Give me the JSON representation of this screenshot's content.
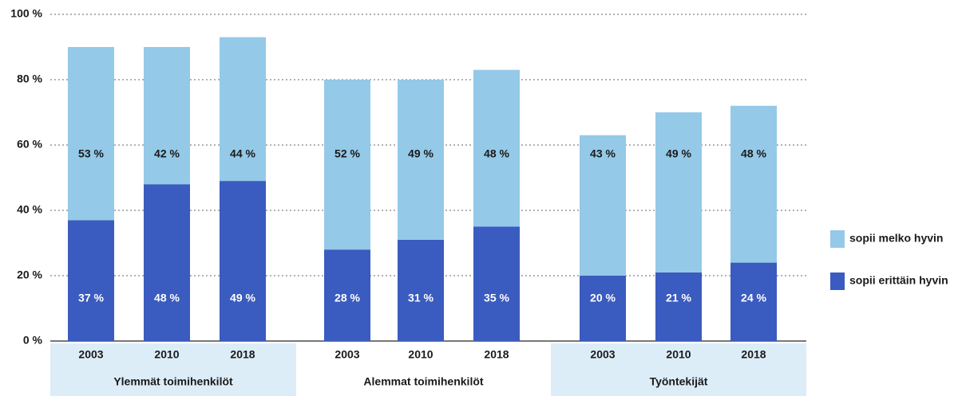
{
  "chart_data": {
    "type": "stacked_bar",
    "groups": [
      "Ylemmät toimihenkilöt",
      "Alemmat toimihenkilöt",
      "Työntekijät"
    ],
    "categories": [
      "2003",
      "2010",
      "2018",
      "2003",
      "2010",
      "2018",
      "2003",
      "2010",
      "2018"
    ],
    "series": [
      {
        "name": "sopii erittäin hyvin",
        "color": "#3a5bbf",
        "values": [
          37,
          48,
          49,
          28,
          31,
          35,
          20,
          21,
          24
        ],
        "value_labels": [
          "37 %",
          "48 %",
          "49 %",
          "28 %",
          "31 %",
          "35 %",
          "20 %",
          "21 %",
          "24 %"
        ]
      },
      {
        "name": "sopii melko hyvin",
        "color": "#94c9e8",
        "values": [
          53,
          42,
          44,
          52,
          49,
          48,
          43,
          49,
          48
        ],
        "value_labels": [
          "53 %",
          "42 %",
          "44 %",
          "52 %",
          "49 %",
          "48 %",
          "43 %",
          "49 %",
          "48 %"
        ]
      }
    ],
    "ylim": [
      0,
      100
    ],
    "yticks": [
      {
        "value": 0,
        "label": "0 %"
      },
      {
        "value": 20,
        "label": "20 %"
      },
      {
        "value": 40,
        "label": "40 %"
      },
      {
        "value": 60,
        "label": "60 %"
      },
      {
        "value": 80,
        "label": "80 %"
      },
      {
        "value": 100,
        "label": "100 %"
      }
    ],
    "grid": true,
    "legend": "right"
  }
}
